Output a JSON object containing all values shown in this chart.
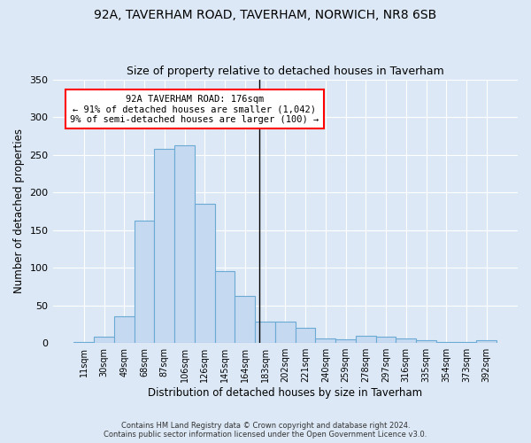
{
  "title_line1": "92A, TAVERHAM ROAD, TAVERHAM, NORWICH, NR8 6SB",
  "title_line2": "Size of property relative to detached houses in Taverham",
  "xlabel": "Distribution of detached houses by size in Taverham",
  "ylabel": "Number of detached properties",
  "footnote1": "Contains HM Land Registry data © Crown copyright and database right 2024.",
  "footnote2": "Contains public sector information licensed under the Open Government Licence v3.0.",
  "categories": [
    "11sqm",
    "30sqm",
    "49sqm",
    "68sqm",
    "87sqm",
    "106sqm",
    "126sqm",
    "145sqm",
    "164sqm",
    "183sqm",
    "202sqm",
    "221sqm",
    "240sqm",
    "259sqm",
    "278sqm",
    "297sqm",
    "316sqm",
    "335sqm",
    "354sqm",
    "373sqm",
    "392sqm"
  ],
  "values": [
    2,
    8,
    35,
    162,
    258,
    263,
    185,
    96,
    63,
    29,
    28,
    20,
    6,
    5,
    10,
    8,
    6,
    4,
    2,
    2,
    4
  ],
  "bar_color": "#c5d9f0",
  "bar_edge_color": "#6aaad4",
  "background_color": "#dce8f5",
  "vline_x_index": 8.7,
  "vline_color": "black",
  "annotation_line1": "92A TAVERHAM ROAD: 176sqm",
  "annotation_line2": "← 91% of detached houses are smaller (1,042)",
  "annotation_line3": "9% of semi-detached houses are larger (100) →",
  "annotation_box_color": "white",
  "annotation_box_edgecolor": "red",
  "ylim": [
    0,
    350
  ],
  "yticks": [
    0,
    50,
    100,
    150,
    200,
    250,
    300,
    350
  ]
}
